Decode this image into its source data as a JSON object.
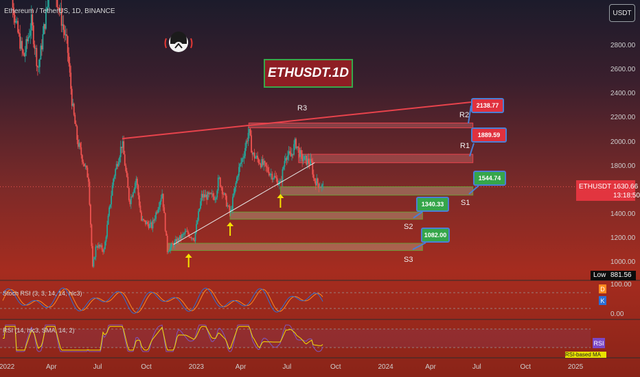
{
  "header": {
    "symbol_text": "Ethereum / TetherUS, 1D, BINANCE",
    "quote_button": "USDT",
    "title": "ETHUSDT.1D"
  },
  "price_tag": {
    "symbol": "ETHUSDT",
    "price": "1630.66",
    "countdown": "13:18:50"
  },
  "low_tag": {
    "label": "Low",
    "value": "881.56"
  },
  "indicators": {
    "stoch": {
      "label": "Stoch RSI (3, 3, 14, 14, hlc3)",
      "badge_d": "D",
      "badge_k": "K",
      "ticks": [
        "100.00",
        "0.00"
      ]
    },
    "rsi": {
      "label": "RSI (14, hlc3, SMA, 14, 2)",
      "badge": "RSI",
      "based": "RSI-based MA"
    }
  },
  "levels": [
    {
      "name": "R3",
      "callout": ""
    },
    {
      "name": "R2",
      "callout": "2138.77"
    },
    {
      "name": "R1",
      "callout": "1889.59"
    },
    {
      "name": "S1",
      "callout": "1544.74"
    },
    {
      "name": "S2",
      "callout": "1340.33"
    },
    {
      "name": "S3",
      "callout": "1082.00"
    }
  ],
  "colors": {
    "up": "#26a69a",
    "down": "#ef5350",
    "resistance": "#e8434c",
    "support_zone": "#6b9a36",
    "callout_border": "#4a7fd6",
    "arrow": "#f5e100"
  },
  "chart_data": {
    "type": "candlestick",
    "y_axis": {
      "min": 880,
      "max": 3050,
      "scale": "linear",
      "ticks": [
        1000,
        1200,
        1400,
        1600,
        1800,
        2000,
        2200,
        2400,
        2600,
        2800
      ],
      "tick_labels": [
        "1000.00",
        "1200.00",
        "1400.00",
        "1600.00",
        "1800.00",
        "2000.00",
        "2200.00",
        "2400.00",
        "2600.00",
        "2800.00"
      ]
    },
    "x_axis": {
      "ticks": [
        "2022",
        "Apr",
        "Jul",
        "Oct",
        "2023",
        "Apr",
        "Jul",
        "Oct",
        "2024",
        "Apr",
        "Jul",
        "Oct",
        "2025"
      ]
    },
    "price_path": [
      [
        "2022-01-01",
        3700
      ],
      [
        "2022-01-20",
        3000
      ],
      [
        "2022-02-05",
        2700
      ],
      [
        "2022-02-20",
        3000
      ],
      [
        "2022-03-05",
        2600
      ],
      [
        "2022-03-31",
        3400
      ],
      [
        "2022-04-10",
        3200
      ],
      [
        "2022-04-30",
        2800
      ],
      [
        "2022-05-10",
        2300
      ],
      [
        "2022-05-20",
        2000
      ],
      [
        "2022-06-10",
        1700
      ],
      [
        "2022-06-18",
        950
      ],
      [
        "2022-06-25",
        1150
      ],
      [
        "2022-07-10",
        1100
      ],
      [
        "2022-07-28",
        1700
      ],
      [
        "2022-08-14",
        2000
      ],
      [
        "2022-08-28",
        1500
      ],
      [
        "2022-09-10",
        1700
      ],
      [
        "2022-09-20",
        1350
      ],
      [
        "2022-10-10",
        1300
      ],
      [
        "2022-10-30",
        1580
      ],
      [
        "2022-11-09",
        1100
      ],
      [
        "2022-11-20",
        1150
      ],
      [
        "2022-12-15",
        1250
      ],
      [
        "2022-12-31",
        1200
      ],
      [
        "2023-01-14",
        1550
      ],
      [
        "2023-02-10",
        1550
      ],
      [
        "2023-02-16",
        1700
      ],
      [
        "2023-03-10",
        1400
      ],
      [
        "2023-03-25",
        1750
      ],
      [
        "2023-04-05",
        1900
      ],
      [
        "2023-04-15",
        2100
      ],
      [
        "2023-04-22",
        1900
      ],
      [
        "2023-05-15",
        1800
      ],
      [
        "2023-06-15",
        1650
      ],
      [
        "2023-06-25",
        1900
      ],
      [
        "2023-07-05",
        1880
      ],
      [
        "2023-07-14",
        2000
      ],
      [
        "2023-07-25",
        1870
      ],
      [
        "2023-08-15",
        1820
      ],
      [
        "2023-08-17",
        1700
      ],
      [
        "2023-08-28",
        1650
      ],
      [
        "2023-09-05",
        1630
      ]
    ],
    "lines": [
      {
        "name": "R3",
        "from": [
          "2022-08-14",
          2030
        ],
        "to": [
          "2024-07-01",
          2340
        ]
      },
      {
        "name": "trendline",
        "from": [
          "2022-11-21",
          1150
        ],
        "to": [
          "2023-08-20",
          1830
        ]
      }
    ],
    "zones": [
      {
        "name": "R2",
        "value": 2138.77,
        "low": 2120,
        "high": 2160,
        "from": "2023-04-15",
        "to": "2024-06-20"
      },
      {
        "name": "R1",
        "value": 1889.59,
        "low": 1830,
        "high": 1900,
        "from": "2023-07-20",
        "to": "2024-06-20"
      },
      {
        "name": "S1",
        "value": 1544.74,
        "low": 1560,
        "high": 1630,
        "from": "2023-06-15",
        "to": "2024-06-20"
      },
      {
        "name": "S2",
        "value": 1340.33,
        "low": 1360,
        "high": 1420,
        "from": "2023-03-10",
        "to": "2024-03-15"
      },
      {
        "name": "S3",
        "value": 1082.0,
        "low": 1100,
        "high": 1160,
        "from": "2022-11-10",
        "to": "2024-03-15"
      }
    ],
    "arrows": [
      "2022-12-20",
      "2023-03-10",
      "2023-06-15"
    ],
    "last_price": 1630.66
  }
}
